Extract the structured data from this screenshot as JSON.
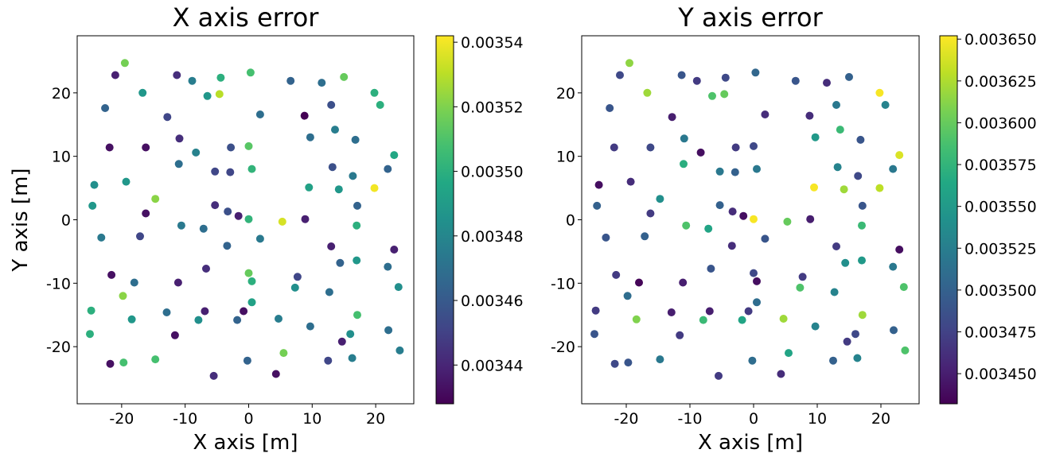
{
  "chart_data": [
    {
      "type": "scatter",
      "title": "X axis error",
      "xlabel": "X axis [m]",
      "ylabel": "Y axis [m]",
      "xlim": [
        -27,
        26
      ],
      "ylim": [
        -29,
        29
      ],
      "xticks": [
        -20,
        -10,
        0,
        10,
        20
      ],
      "yticks": [
        -20,
        -10,
        0,
        10,
        20
      ],
      "colorbar": {
        "colormap": "viridis",
        "range": [
          0.003428,
          0.003542
        ],
        "ticks": [
          0.00344,
          0.00346,
          0.00348,
          0.0035,
          0.00352,
          0.00354
        ],
        "tick_labels": [
          "0.00344",
          "0.00346",
          "0.00348",
          "0.00350",
          "0.00352",
          "0.00354"
        ]
      },
      "points": [
        {
          "x": -19.5,
          "y": 24.7,
          "v": 0.003518
        },
        {
          "x": -21.0,
          "y": 22.8,
          "v": 0.003438
        },
        {
          "x": -16.7,
          "y": 20.0,
          "v": 0.003488
        },
        {
          "x": -11.3,
          "y": 22.8,
          "v": 0.003443
        },
        {
          "x": -8.9,
          "y": 21.9,
          "v": 0.003476
        },
        {
          "x": -4.4,
          "y": 22.4,
          "v": 0.0035
        },
        {
          "x": 0.3,
          "y": 23.2,
          "v": 0.003508
        },
        {
          "x": 6.6,
          "y": 21.9,
          "v": 0.003464
        },
        {
          "x": 11.5,
          "y": 21.6,
          "v": 0.003469
        },
        {
          "x": 15.0,
          "y": 22.5,
          "v": 0.003515
        },
        {
          "x": 19.8,
          "y": 20.0,
          "v": 0.0035
        },
        {
          "x": 20.7,
          "y": 18.1,
          "v": 0.0035
        },
        {
          "x": -22.6,
          "y": 17.6,
          "v": 0.003464
        },
        {
          "x": -6.5,
          "y": 19.5,
          "v": 0.003488
        },
        {
          "x": -4.6,
          "y": 19.8,
          "v": 0.00353
        },
        {
          "x": -12.8,
          "y": 16.2,
          "v": 0.003452
        },
        {
          "x": 1.8,
          "y": 16.6,
          "v": 0.003469
        },
        {
          "x": 8.8,
          "y": 16.4,
          "v": 0.003428
        },
        {
          "x": 13.0,
          "y": 18.1,
          "v": 0.003456
        },
        {
          "x": 13.6,
          "y": 14.2,
          "v": 0.003476
        },
        {
          "x": -10.9,
          "y": 12.8,
          "v": 0.003443
        },
        {
          "x": -21.9,
          "y": 11.4,
          "v": 0.003433
        },
        {
          "x": -16.2,
          "y": 11.4,
          "v": 0.003433
        },
        {
          "x": -8.3,
          "y": 10.6,
          "v": 0.003478
        },
        {
          "x": -2.8,
          "y": 11.4,
          "v": 0.003456
        },
        {
          "x": 0.0,
          "y": 11.6,
          "v": 0.003512
        },
        {
          "x": 9.7,
          "y": 13.0,
          "v": 0.003469
        },
        {
          "x": 16.8,
          "y": 12.6,
          "v": 0.003469
        },
        {
          "x": 22.9,
          "y": 10.2,
          "v": 0.003496
        },
        {
          "x": -11.0,
          "y": 8.8,
          "v": 0.003469
        },
        {
          "x": -5.3,
          "y": 7.6,
          "v": 0.003452
        },
        {
          "x": -2.9,
          "y": 7.5,
          "v": 0.003452
        },
        {
          "x": 0.5,
          "y": 8.0,
          "v": 0.003502
        },
        {
          "x": 13.2,
          "y": 8.3,
          "v": 0.003456
        },
        {
          "x": 16.4,
          "y": 6.9,
          "v": 0.003474
        },
        {
          "x": 21.9,
          "y": 8.0,
          "v": 0.003464
        },
        {
          "x": -24.3,
          "y": 5.5,
          "v": 0.003484
        },
        {
          "x": -19.3,
          "y": 6.0,
          "v": 0.003488
        },
        {
          "x": 9.5,
          "y": 5.1,
          "v": 0.003493
        },
        {
          "x": 14.2,
          "y": 4.8,
          "v": 0.003488
        },
        {
          "x": 19.8,
          "y": 5.0,
          "v": 0.00354
        },
        {
          "x": -24.6,
          "y": 2.2,
          "v": 0.003488
        },
        {
          "x": -14.7,
          "y": 3.3,
          "v": 0.003522
        },
        {
          "x": -16.2,
          "y": 1.0,
          "v": 0.003433
        },
        {
          "x": -5.3,
          "y": 2.3,
          "v": 0.003443
        },
        {
          "x": -3.3,
          "y": 1.3,
          "v": 0.003456
        },
        {
          "x": -1.6,
          "y": 0.6,
          "v": 0.003438
        },
        {
          "x": 0.0,
          "y": 0.1,
          "v": 0.003502
        },
        {
          "x": 5.3,
          "y": -0.3,
          "v": 0.003535
        },
        {
          "x": 8.9,
          "y": 0.1,
          "v": 0.003438
        },
        {
          "x": 17.1,
          "y": 2.2,
          "v": 0.003464
        },
        {
          "x": -23.2,
          "y": -2.8,
          "v": 0.003474
        },
        {
          "x": -17.1,
          "y": -2.6,
          "v": 0.003452
        },
        {
          "x": -10.6,
          "y": -0.9,
          "v": 0.003474
        },
        {
          "x": -7.1,
          "y": -1.4,
          "v": 0.003469
        },
        {
          "x": 1.8,
          "y": -3.0,
          "v": 0.003474
        },
        {
          "x": 17.0,
          "y": -0.9,
          "v": 0.0035
        },
        {
          "x": 13.0,
          "y": -4.2,
          "v": 0.003438
        },
        {
          "x": 22.9,
          "y": -4.7,
          "v": 0.003438
        },
        {
          "x": -3.4,
          "y": -4.1,
          "v": 0.003464
        },
        {
          "x": -6.7,
          "y": -7.7,
          "v": 0.003443
        },
        {
          "x": 14.4,
          "y": -6.8,
          "v": 0.003464
        },
        {
          "x": 17.0,
          "y": -6.4,
          "v": 0.003488
        },
        {
          "x": 21.9,
          "y": -7.4,
          "v": 0.003469
        },
        {
          "x": -21.6,
          "y": -8.7,
          "v": 0.003433
        },
        {
          "x": -18.0,
          "y": -9.9,
          "v": 0.003469
        },
        {
          "x": -11.1,
          "y": -9.9,
          "v": 0.003438
        },
        {
          "x": 0.0,
          "y": -8.4,
          "v": 0.003515
        },
        {
          "x": 0.5,
          "y": -9.7,
          "v": 0.0035
        },
        {
          "x": 7.7,
          "y": -9.0,
          "v": 0.003452
        },
        {
          "x": 7.3,
          "y": -10.7,
          "v": 0.003484
        },
        {
          "x": 12.7,
          "y": -11.4,
          "v": 0.003469
        },
        {
          "x": 23.6,
          "y": -10.6,
          "v": 0.003484
        },
        {
          "x": -19.8,
          "y": -12.0,
          "v": 0.003522
        },
        {
          "x": 0.5,
          "y": -13.0,
          "v": 0.003493
        },
        {
          "x": -24.8,
          "y": -14.3,
          "v": 0.0035
        },
        {
          "x": -12.9,
          "y": -14.6,
          "v": 0.003469
        },
        {
          "x": -6.9,
          "y": -14.4,
          "v": 0.003438
        },
        {
          "x": -0.8,
          "y": -14.4,
          "v": 0.003433
        },
        {
          "x": -18.4,
          "y": -15.7,
          "v": 0.003488
        },
        {
          "x": -7.9,
          "y": -15.8,
          "v": 0.003484
        },
        {
          "x": -1.8,
          "y": -15.8,
          "v": 0.003464
        },
        {
          "x": 4.7,
          "y": -15.6,
          "v": 0.003476
        },
        {
          "x": 17.1,
          "y": -15.0,
          "v": 0.003508
        },
        {
          "x": -25.0,
          "y": -18.0,
          "v": 0.0035
        },
        {
          "x": -11.6,
          "y": -18.2,
          "v": 0.003433
        },
        {
          "x": 9.7,
          "y": -16.8,
          "v": 0.003469
        },
        {
          "x": 16.0,
          "y": -18.0,
          "v": 0.003484
        },
        {
          "x": 22.0,
          "y": -17.4,
          "v": 0.003469
        },
        {
          "x": 14.7,
          "y": -19.2,
          "v": 0.003438
        },
        {
          "x": -21.8,
          "y": -22.7,
          "v": 0.003433
        },
        {
          "x": -19.7,
          "y": -22.5,
          "v": 0.003508
        },
        {
          "x": -14.7,
          "y": -22.0,
          "v": 0.003508
        },
        {
          "x": 5.5,
          "y": -21.0,
          "v": 0.003518
        },
        {
          "x": 12.5,
          "y": -22.2,
          "v": 0.003452
        },
        {
          "x": 16.3,
          "y": -21.8,
          "v": 0.003476
        },
        {
          "x": 23.8,
          "y": -20.6,
          "v": 0.003476
        },
        {
          "x": -0.2,
          "y": -22.2,
          "v": 0.003464
        },
        {
          "x": -5.5,
          "y": -24.6,
          "v": 0.003443
        },
        {
          "x": 4.3,
          "y": -24.3,
          "v": 0.003433
        }
      ]
    },
    {
      "type": "scatter",
      "title": "Y axis error",
      "xlabel": "X axis [m]",
      "ylabel": "",
      "xlim": [
        -27,
        26
      ],
      "ylim": [
        -29,
        29
      ],
      "xticks": [
        -20,
        -10,
        0,
        10,
        20
      ],
      "yticks": [
        -20,
        -10,
        0,
        10,
        20
      ],
      "colorbar": {
        "colormap": "viridis",
        "range": [
          0.003432,
          0.003652
        ],
        "ticks": [
          0.00345,
          0.003475,
          0.0035,
          0.003525,
          0.00355,
          0.003575,
          0.0036,
          0.003625,
          0.00365
        ],
        "tick_labels": [
          "0.003450",
          "0.003475",
          "0.003500",
          "0.003525",
          "0.003550",
          "0.003575",
          "0.003600",
          "0.003625",
          "0.003650"
        ]
      },
      "points": [
        {
          "x": -19.5,
          "y": 24.7,
          "v": 0.003615
        },
        {
          "x": -21.0,
          "y": 22.8,
          "v": 0.00348
        },
        {
          "x": -16.7,
          "y": 20.0,
          "v": 0.00362
        },
        {
          "x": -11.3,
          "y": 22.8,
          "v": 0.00349
        },
        {
          "x": -8.9,
          "y": 21.9,
          "v": 0.00347
        },
        {
          "x": -4.4,
          "y": 22.4,
          "v": 0.00348
        },
        {
          "x": 0.3,
          "y": 23.2,
          "v": 0.003505
        },
        {
          "x": 6.6,
          "y": 21.9,
          "v": 0.00349
        },
        {
          "x": 11.5,
          "y": 21.6,
          "v": 0.00346
        },
        {
          "x": 15.0,
          "y": 22.5,
          "v": 0.0035
        },
        {
          "x": 19.8,
          "y": 20.0,
          "v": 0.00365
        },
        {
          "x": 20.7,
          "y": 18.1,
          "v": 0.00353
        },
        {
          "x": -22.6,
          "y": 17.6,
          "v": 0.00349
        },
        {
          "x": -6.5,
          "y": 19.5,
          "v": 0.00359
        },
        {
          "x": -4.6,
          "y": 19.8,
          "v": 0.0036
        },
        {
          "x": -12.8,
          "y": 16.2,
          "v": 0.00345
        },
        {
          "x": 1.8,
          "y": 16.6,
          "v": 0.00346
        },
        {
          "x": 8.8,
          "y": 16.4,
          "v": 0.00346
        },
        {
          "x": 13.0,
          "y": 18.1,
          "v": 0.00352
        },
        {
          "x": 13.6,
          "y": 14.2,
          "v": 0.00358
        },
        {
          "x": -10.9,
          "y": 12.8,
          "v": 0.00352
        },
        {
          "x": -21.9,
          "y": 11.4,
          "v": 0.00347
        },
        {
          "x": -16.2,
          "y": 11.4,
          "v": 0.00348
        },
        {
          "x": -8.3,
          "y": 10.6,
          "v": 0.00344
        },
        {
          "x": -2.8,
          "y": 11.4,
          "v": 0.00347
        },
        {
          "x": 0.0,
          "y": 11.6,
          "v": 0.00348
        },
        {
          "x": 9.7,
          "y": 13.0,
          "v": 0.00355
        },
        {
          "x": 16.8,
          "y": 12.6,
          "v": 0.00349
        },
        {
          "x": 22.9,
          "y": 10.2,
          "v": 0.00364
        },
        {
          "x": -11.0,
          "y": 8.8,
          "v": 0.00357
        },
        {
          "x": -5.3,
          "y": 7.6,
          "v": 0.00352
        },
        {
          "x": -2.9,
          "y": 7.5,
          "v": 0.0035
        },
        {
          "x": 0.5,
          "y": 8.0,
          "v": 0.00352
        },
        {
          "x": 13.2,
          "y": 8.3,
          "v": 0.00353
        },
        {
          "x": 16.4,
          "y": 6.9,
          "v": 0.00348
        },
        {
          "x": 21.9,
          "y": 8.0,
          "v": 0.00352
        },
        {
          "x": -24.3,
          "y": 5.5,
          "v": 0.00344
        },
        {
          "x": -19.3,
          "y": 6.0,
          "v": 0.00346
        },
        {
          "x": 9.5,
          "y": 5.1,
          "v": 0.00365
        },
        {
          "x": 14.2,
          "y": 4.8,
          "v": 0.00362
        },
        {
          "x": 19.8,
          "y": 5.0,
          "v": 0.00363
        },
        {
          "x": -24.6,
          "y": 2.2,
          "v": 0.0035
        },
        {
          "x": -14.7,
          "y": 3.3,
          "v": 0.00354
        },
        {
          "x": -16.2,
          "y": 1.0,
          "v": 0.00347
        },
        {
          "x": -5.3,
          "y": 2.3,
          "v": 0.0035
        },
        {
          "x": -3.3,
          "y": 1.3,
          "v": 0.00346
        },
        {
          "x": -1.6,
          "y": 0.6,
          "v": 0.00344
        },
        {
          "x": 0.0,
          "y": 0.1,
          "v": 0.00365
        },
        {
          "x": 5.3,
          "y": -0.3,
          "v": 0.0036
        },
        {
          "x": 8.9,
          "y": 0.1,
          "v": 0.00345
        },
        {
          "x": 17.1,
          "y": 2.2,
          "v": 0.00349
        },
        {
          "x": -23.2,
          "y": -2.8,
          "v": 0.00349
        },
        {
          "x": -17.1,
          "y": -2.6,
          "v": 0.0035
        },
        {
          "x": -10.6,
          "y": -0.9,
          "v": 0.00359
        },
        {
          "x": -7.1,
          "y": -1.4,
          "v": 0.00356
        },
        {
          "x": 1.8,
          "y": -3.0,
          "v": 0.00349
        },
        {
          "x": 17.0,
          "y": -0.9,
          "v": 0.00358
        },
        {
          "x": 13.0,
          "y": -4.2,
          "v": 0.00347
        },
        {
          "x": 22.9,
          "y": -4.7,
          "v": 0.00344
        },
        {
          "x": -3.4,
          "y": -4.1,
          "v": 0.00346
        },
        {
          "x": -6.7,
          "y": -7.7,
          "v": 0.00349
        },
        {
          "x": 14.4,
          "y": -6.8,
          "v": 0.00354
        },
        {
          "x": 17.0,
          "y": -6.4,
          "v": 0.00355
        },
        {
          "x": 21.9,
          "y": -7.4,
          "v": 0.00352
        },
        {
          "x": -21.6,
          "y": -8.7,
          "v": 0.00347
        },
        {
          "x": -18.0,
          "y": -9.9,
          "v": 0.003435
        },
        {
          "x": -11.1,
          "y": -9.9,
          "v": 0.00345
        },
        {
          "x": 0.0,
          "y": -8.4,
          "v": 0.00348
        },
        {
          "x": 0.5,
          "y": -9.7,
          "v": 0.00344
        },
        {
          "x": 7.7,
          "y": -9.0,
          "v": 0.00347
        },
        {
          "x": 7.3,
          "y": -10.7,
          "v": 0.00359
        },
        {
          "x": 12.7,
          "y": -11.4,
          "v": 0.00353
        },
        {
          "x": 23.6,
          "y": -10.6,
          "v": 0.00359
        },
        {
          "x": -19.8,
          "y": -12.0,
          "v": 0.00351
        },
        {
          "x": 0.5,
          "y": -13.0,
          "v": 0.00351
        },
        {
          "x": -24.8,
          "y": -14.3,
          "v": 0.00347
        },
        {
          "x": -12.9,
          "y": -14.6,
          "v": 0.00345
        },
        {
          "x": -6.9,
          "y": -14.4,
          "v": 0.00345
        },
        {
          "x": -0.8,
          "y": -14.4,
          "v": 0.00347
        },
        {
          "x": -18.4,
          "y": -15.7,
          "v": 0.00361
        },
        {
          "x": -7.9,
          "y": -15.8,
          "v": 0.00358
        },
        {
          "x": -1.8,
          "y": -15.8,
          "v": 0.00356
        },
        {
          "x": 4.7,
          "y": -15.6,
          "v": 0.00362
        },
        {
          "x": 17.1,
          "y": -15.0,
          "v": 0.00362
        },
        {
          "x": -25.0,
          "y": -18.0,
          "v": 0.00349
        },
        {
          "x": -11.6,
          "y": -18.2,
          "v": 0.00347
        },
        {
          "x": 9.7,
          "y": -16.8,
          "v": 0.00353
        },
        {
          "x": 16.0,
          "y": -18.0,
          "v": 0.00348
        },
        {
          "x": 22.0,
          "y": -17.4,
          "v": 0.0035
        },
        {
          "x": 14.7,
          "y": -19.2,
          "v": 0.00347
        },
        {
          "x": -21.8,
          "y": -22.7,
          "v": 0.00348
        },
        {
          "x": -19.7,
          "y": -22.5,
          "v": 0.00349
        },
        {
          "x": -14.7,
          "y": -22.0,
          "v": 0.00352
        },
        {
          "x": 5.5,
          "y": -21.0,
          "v": 0.00356
        },
        {
          "x": 12.5,
          "y": -22.2,
          "v": 0.0035
        },
        {
          "x": 16.3,
          "y": -21.8,
          "v": 0.00353
        },
        {
          "x": 23.8,
          "y": -20.6,
          "v": 0.00359
        },
        {
          "x": -0.2,
          "y": -22.2,
          "v": 0.00351
        },
        {
          "x": -5.5,
          "y": -24.6,
          "v": 0.00347
        },
        {
          "x": 4.3,
          "y": -24.3,
          "v": 0.00346
        }
      ]
    }
  ]
}
